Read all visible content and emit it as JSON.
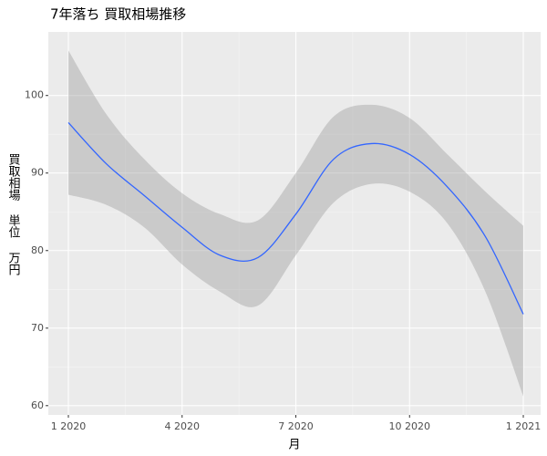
{
  "chart_data": {
    "type": "line",
    "title": "7年落ち 買取相場推移",
    "x_label": "月",
    "y_label": "買取相場 単位 万円",
    "x": [
      "2020-01",
      "2020-02",
      "2020-03",
      "2020-04",
      "2020-05",
      "2020-06",
      "2020-07",
      "2020-08",
      "2020-09",
      "2020-10",
      "2020-11",
      "2020-12",
      "2021-01"
    ],
    "series": [
      {
        "color": "#3366ff",
        "band_color": "#999999",
        "values": [
          96.5,
          91.2,
          87.1,
          83.0,
          79.4,
          79.1,
          84.7,
          91.8,
          93.8,
          92.4,
          88.2,
          81.8,
          71.8
        ],
        "band_upper": [
          105.8,
          97.6,
          91.8,
          87.4,
          84.7,
          83.9,
          90.0,
          97.3,
          98.8,
          97.1,
          92.4,
          87.6,
          83.2
        ],
        "band_lower": [
          87.2,
          85.9,
          83.0,
          78.2,
          74.7,
          72.9,
          79.4,
          86.2,
          88.6,
          87.6,
          83.5,
          74.7,
          61.2
        ]
      }
    ],
    "ylim": [
      58.8,
      108.2
    ],
    "yticks": [
      60,
      70,
      80,
      90,
      100
    ],
    "xticks": [
      {
        "value": "2020-01",
        "label": "1 2020"
      },
      {
        "value": "2020-04",
        "label": "4 2020"
      },
      {
        "value": "2020-07",
        "label": "7 2020"
      },
      {
        "value": "2020-10",
        "label": "10 2020"
      },
      {
        "value": "2021-01",
        "label": "1 2021"
      }
    ],
    "grid": true
  }
}
